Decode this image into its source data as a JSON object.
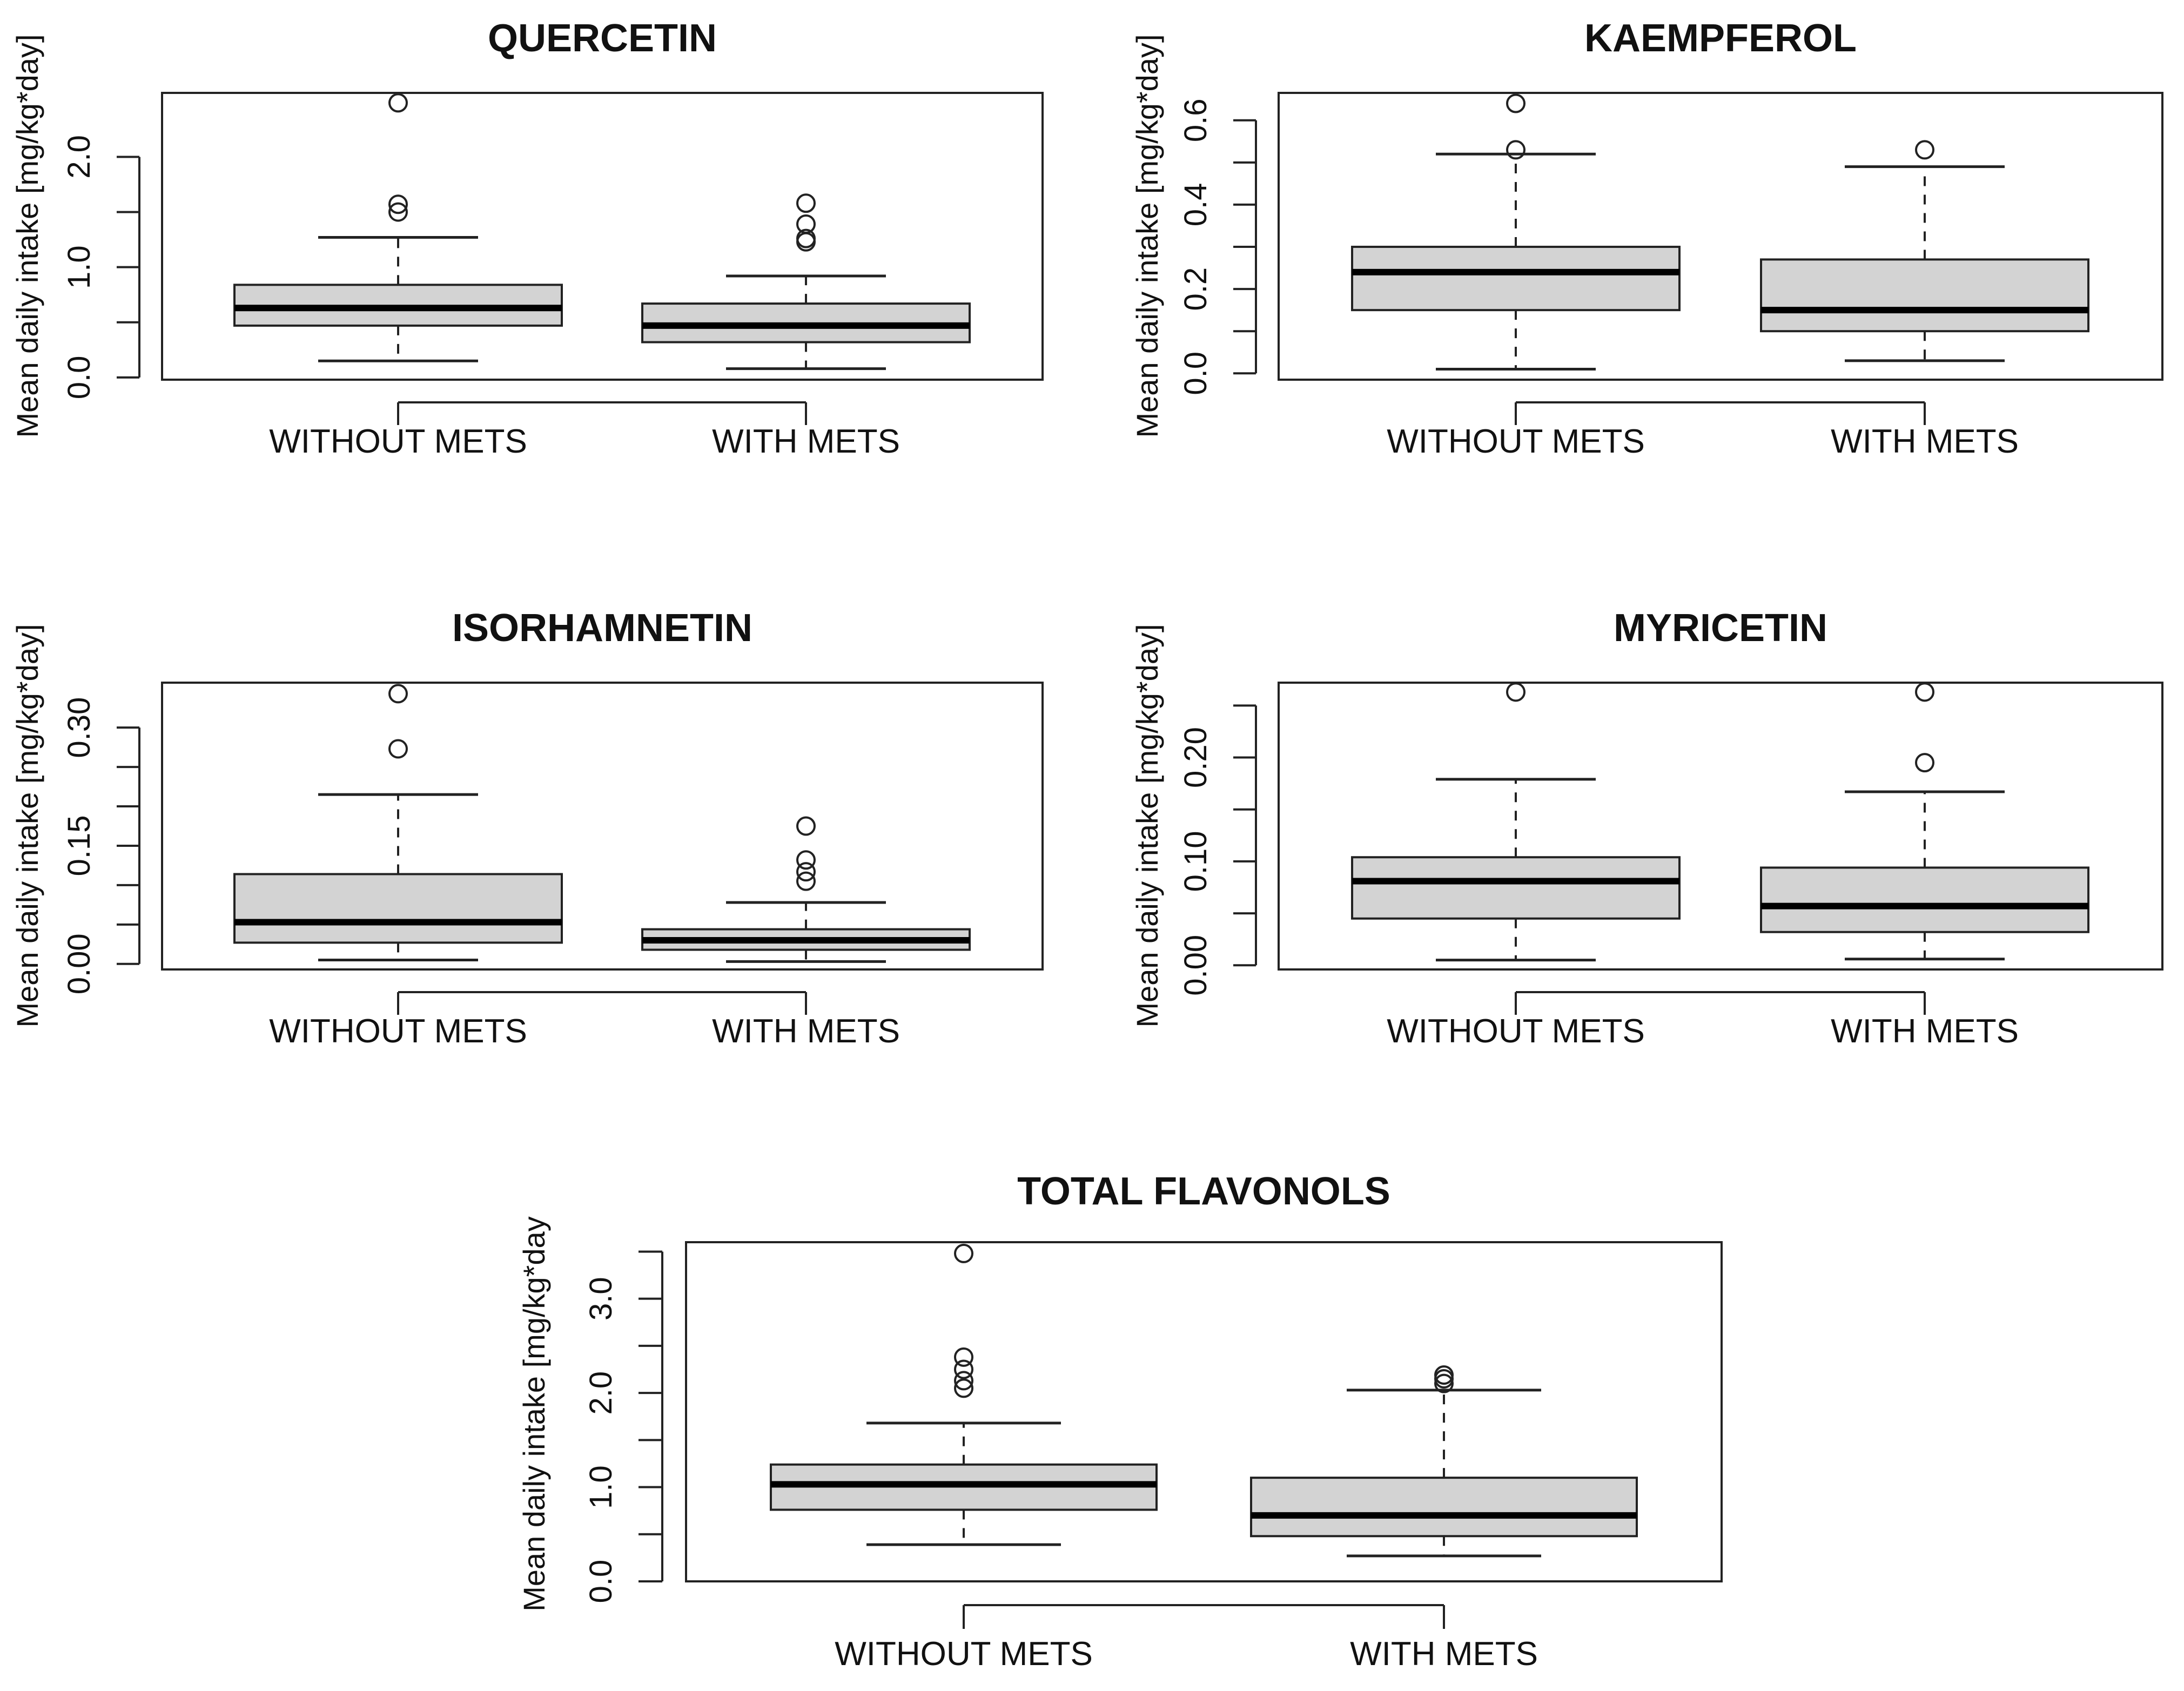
{
  "chart_data": [
    {
      "type": "boxplot",
      "title": "QUERCETIN",
      "ylabel": "Mean daily intake [mg/kg*day]",
      "categories": [
        "WITHOUT METS",
        "WITH METS"
      ],
      "ylim": [
        -0.02,
        2.58
      ],
      "yticks": [
        "0.0",
        "1.0",
        "2.0"
      ],
      "ytick_values": [
        0,
        1,
        2
      ],
      "minor_ticks": [
        0.5,
        1.5
      ],
      "boxes": [
        {
          "name": "WITHOUT METS",
          "whisker_low": 0.15,
          "q1": 0.47,
          "median": 0.63,
          "q3": 0.84,
          "whisker_high": 1.27,
          "outliers": [
            1.5,
            1.57,
            2.49
          ]
        },
        {
          "name": "WITH METS",
          "whisker_low": 0.08,
          "q1": 0.32,
          "median": 0.47,
          "q3": 0.67,
          "whisker_high": 0.92,
          "outliers": [
            1.23,
            1.26,
            1.39,
            1.58
          ]
        }
      ]
    },
    {
      "type": "boxplot",
      "title": "KAEMPFEROL",
      "ylabel": "Mean daily intake [mg/kg*day]",
      "categories": [
        "WITHOUT METS",
        "WITH METS"
      ],
      "ylim": [
        -0.015,
        0.665
      ],
      "yticks": [
        "0.0",
        "0.2",
        "0.4",
        "0.6"
      ],
      "ytick_values": [
        0,
        0.2,
        0.4,
        0.6
      ],
      "minor_ticks": [
        0.1,
        0.3,
        0.5
      ],
      "boxes": [
        {
          "name": "WITHOUT METS",
          "whisker_low": 0.01,
          "q1": 0.15,
          "median": 0.24,
          "q3": 0.3,
          "whisker_high": 0.52,
          "outliers": [
            0.53,
            0.64
          ]
        },
        {
          "name": "WITH METS",
          "whisker_low": 0.03,
          "q1": 0.1,
          "median": 0.15,
          "q3": 0.27,
          "whisker_high": 0.49,
          "outliers": [
            0.53
          ]
        }
      ]
    },
    {
      "type": "boxplot",
      "title": "ISORHAMNETIN",
      "ylabel": "Mean daily intake [mg/kg*day]",
      "categories": [
        "WITHOUT METS",
        "WITH METS"
      ],
      "ylim": [
        -0.007,
        0.357
      ],
      "yticks": [
        "0.00",
        "0.15",
        "0.30"
      ],
      "ytick_values": [
        0,
        0.15,
        0.3
      ],
      "minor_ticks": [
        0.05,
        0.1,
        0.2,
        0.25
      ],
      "boxes": [
        {
          "name": "WITHOUT METS",
          "whisker_low": 0.005,
          "q1": 0.027,
          "median": 0.053,
          "q3": 0.114,
          "whisker_high": 0.215,
          "outliers": [
            0.273,
            0.343
          ]
        },
        {
          "name": "WITH METS",
          "whisker_low": 0.003,
          "q1": 0.018,
          "median": 0.03,
          "q3": 0.044,
          "whisker_high": 0.078,
          "outliers": [
            0.105,
            0.117,
            0.132,
            0.175
          ]
        }
      ]
    },
    {
      "type": "boxplot",
      "title": "MYRICETIN",
      "ylabel": "Mean daily intake [mg/kg*day]",
      "categories": [
        "WITHOUT METS",
        "WITH METS"
      ],
      "ylim": [
        -0.004,
        0.272
      ],
      "yticks": [
        "0.00",
        "0.10",
        "0.20"
      ],
      "ytick_values": [
        0,
        0.1,
        0.2
      ],
      "minor_ticks": [
        0.05,
        0.15,
        0.25
      ],
      "boxes": [
        {
          "name": "WITHOUT METS",
          "whisker_low": 0.005,
          "q1": 0.045,
          "median": 0.081,
          "q3": 0.104,
          "whisker_high": 0.179,
          "outliers": [
            0.263
          ]
        },
        {
          "name": "WITH METS",
          "whisker_low": 0.006,
          "q1": 0.032,
          "median": 0.057,
          "q3": 0.094,
          "whisker_high": 0.167,
          "outliers": [
            0.195,
            0.263
          ]
        }
      ]
    },
    {
      "type": "boxplot",
      "title": "TOTAL FLAVONOLS",
      "ylabel": "Mean daily intake [mg/kg*day",
      "categories": [
        "WITHOUT METS",
        "WITH METS"
      ],
      "ylim": [
        0,
        3.6
      ],
      "yticks": [
        "0.0",
        "1.0",
        "2.0",
        "3.0"
      ],
      "ytick_values": [
        0,
        1,
        2,
        3
      ],
      "minor_ticks": [
        0.5,
        1.5,
        2.5,
        3.5
      ],
      "boxes": [
        {
          "name": "WITHOUT METS",
          "whisker_low": 0.39,
          "q1": 0.76,
          "median": 1.03,
          "q3": 1.24,
          "whisker_high": 1.68,
          "outliers": [
            2.05,
            2.13,
            2.25,
            2.38,
            3.48
          ]
        },
        {
          "name": "WITH METS",
          "whisker_low": 0.27,
          "q1": 0.48,
          "median": 0.7,
          "q3": 1.1,
          "whisker_high": 2.03,
          "outliers": [
            2.1,
            2.15,
            2.19
          ]
        }
      ]
    }
  ]
}
